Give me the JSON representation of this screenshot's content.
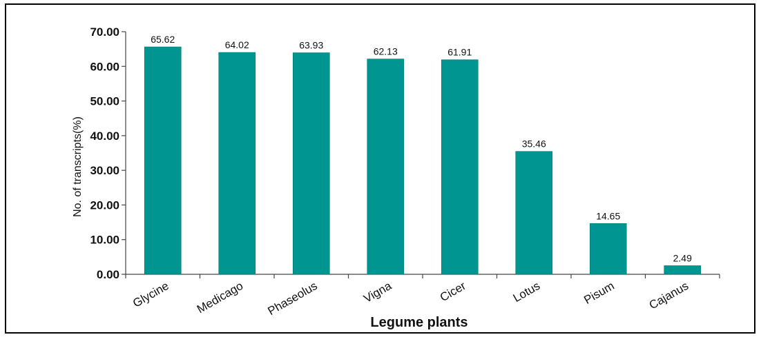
{
  "chart_data": {
    "type": "bar",
    "categories": [
      "Glycine",
      "Medicago",
      "Phaseolus",
      "Vigna",
      "Cicer",
      "Lotus",
      "Pisum",
      "Cajanus"
    ],
    "values": [
      65.62,
      64.02,
      63.93,
      62.13,
      61.91,
      35.46,
      14.65,
      2.49
    ],
    "value_labels": [
      "65.62",
      "64.02",
      "63.93",
      "62.13",
      "61.91",
      "35.46",
      "14.65",
      "2.49"
    ],
    "y_ticks": [
      "0.00",
      "10.00",
      "20.00",
      "30.00",
      "40.00",
      "50.00",
      "60.00",
      "70.00"
    ],
    "xlabel": "Legume plants",
    "ylabel": "No. of transcripts(%)",
    "ylim": [
      0,
      70
    ],
    "grid": false,
    "bar_color": "#009590"
  }
}
